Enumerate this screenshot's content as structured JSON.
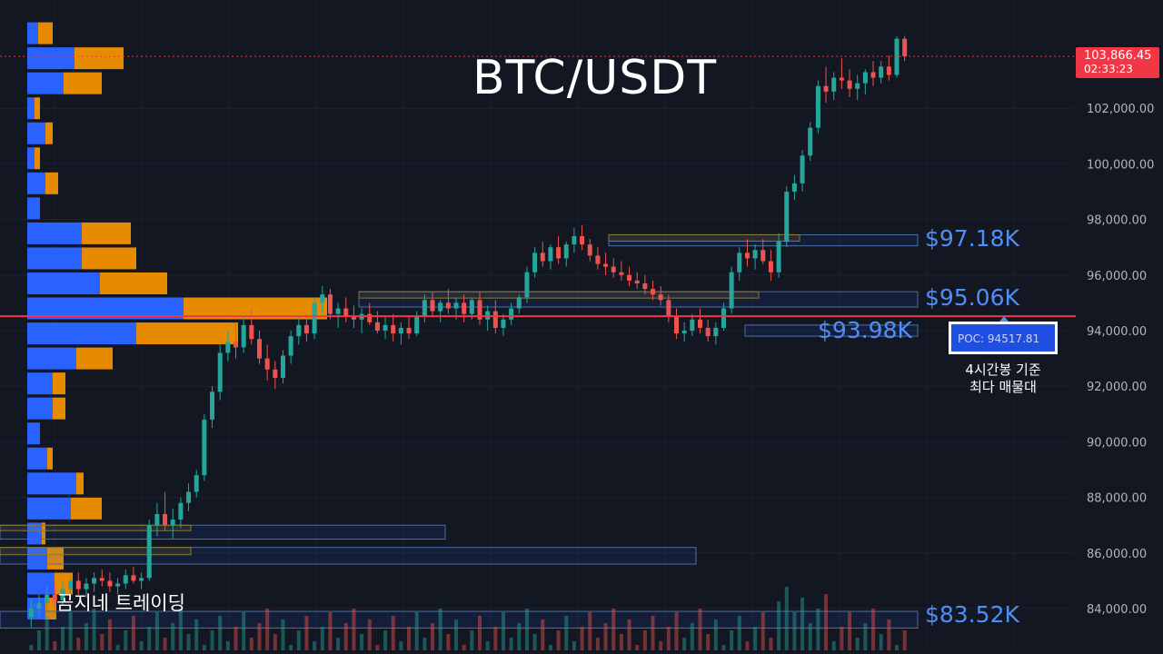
{
  "chart_data": {
    "type": "candlestick",
    "title": "BTC/USDT",
    "y_axis": {
      "ticks": [
        84000,
        86000,
        88000,
        90000,
        92000,
        94000,
        96000,
        98000,
        100000,
        102000
      ],
      "tick_labels": [
        "84,000.00",
        "86,000.00",
        "88,000.00",
        "90,000.00",
        "92,000.00",
        "94,000.00",
        "96,000.00",
        "98,000.00",
        "100,000.00",
        "102,000.00"
      ],
      "range": [
        82500,
        105000
      ]
    },
    "current_price": {
      "value": 103866.45,
      "label": "103,866.45",
      "countdown": "02:33:23"
    },
    "ohlc": [
      [
        83700,
        84300,
        83300,
        84000
      ],
      [
        84000,
        84500,
        83700,
        84200
      ],
      [
        84200,
        84800,
        83900,
        84500
      ],
      [
        84500,
        84900,
        84000,
        84300
      ],
      [
        84300,
        85000,
        84100,
        84700
      ],
      [
        84700,
        85200,
        84400,
        85000
      ],
      [
        85000,
        85300,
        84500,
        84700
      ],
      [
        84700,
        85100,
        84400,
        84900
      ],
      [
        84900,
        85300,
        84600,
        85100
      ],
      [
        85100,
        85400,
        84800,
        85000
      ],
      [
        85000,
        85300,
        84600,
        84800
      ],
      [
        84800,
        85100,
        84500,
        84900
      ],
      [
        84900,
        85400,
        84700,
        85200
      ],
      [
        85200,
        85500,
        84900,
        85000
      ],
      [
        85000,
        85300,
        84700,
        85100
      ],
      [
        85100,
        87200,
        85000,
        87000
      ],
      [
        87000,
        87800,
        86600,
        87400
      ],
      [
        87400,
        88200,
        86800,
        87000
      ],
      [
        87000,
        87600,
        86500,
        87200
      ],
      [
        87200,
        88000,
        86900,
        87800
      ],
      [
        87800,
        88500,
        87500,
        88200
      ],
      [
        88200,
        89000,
        88000,
        88800
      ],
      [
        88800,
        91000,
        88600,
        90800
      ],
      [
        90800,
        92000,
        90500,
        91800
      ],
      [
        91800,
        93500,
        91500,
        93200
      ],
      [
        93200,
        94000,
        92900,
        93600
      ],
      [
        93600,
        94300,
        93000,
        93400
      ],
      [
        93400,
        94500,
        93200,
        94200
      ],
      [
        94200,
        94800,
        93500,
        93700
      ],
      [
        93700,
        94000,
        92800,
        93000
      ],
      [
        93000,
        93500,
        92200,
        92600
      ],
      [
        92600,
        92900,
        91900,
        92300
      ],
      [
        92300,
        93300,
        92100,
        93100
      ],
      [
        93100,
        94000,
        92800,
        93800
      ],
      [
        93800,
        94500,
        93500,
        94200
      ],
      [
        94200,
        94600,
        93600,
        93900
      ],
      [
        93900,
        95200,
        93700,
        95000
      ],
      [
        95000,
        95600,
        94600,
        95300
      ],
      [
        95300,
        95500,
        94400,
        94600
      ],
      [
        94600,
        95000,
        94100,
        94800
      ],
      [
        94800,
        95200,
        94300,
        94500
      ],
      [
        94500,
        94900,
        94100,
        94400
      ],
      [
        94400,
        94800,
        93900,
        94600
      ],
      [
        94600,
        95000,
        94200,
        94300
      ],
      [
        94300,
        94700,
        93900,
        94000
      ],
      [
        94000,
        94500,
        93700,
        94200
      ],
      [
        94200,
        94600,
        93600,
        93900
      ],
      [
        93900,
        94300,
        93500,
        94100
      ],
      [
        94100,
        94500,
        93700,
        93900
      ],
      [
        93900,
        94700,
        93800,
        94500
      ],
      [
        94500,
        95300,
        94300,
        95100
      ],
      [
        95100,
        95400,
        94500,
        94700
      ],
      [
        94700,
        95100,
        94300,
        95000
      ],
      [
        95000,
        95500,
        94600,
        94800
      ],
      [
        94800,
        95200,
        94400,
        95000
      ],
      [
        95000,
        95300,
        94300,
        94600
      ],
      [
        94600,
        95200,
        94400,
        95100
      ],
      [
        95100,
        95400,
        94200,
        94400
      ],
      [
        94400,
        94900,
        94000,
        94700
      ],
      [
        94700,
        95100,
        93900,
        94100
      ],
      [
        94100,
        94600,
        93800,
        94400
      ],
      [
        94400,
        95000,
        94200,
        94800
      ],
      [
        94800,
        95300,
        94600,
        95200
      ],
      [
        95200,
        96300,
        95000,
        96100
      ],
      [
        96100,
        97000,
        95900,
        96800
      ],
      [
        96800,
        97200,
        96300,
        96500
      ],
      [
        96500,
        97100,
        96200,
        97000
      ],
      [
        97000,
        97400,
        96400,
        96600
      ],
      [
        96600,
        97200,
        96300,
        97100
      ],
      [
        97100,
        97700,
        96800,
        97400
      ],
      [
        97400,
        97800,
        96900,
        97100
      ],
      [
        97100,
        97300,
        96500,
        96700
      ],
      [
        96700,
        97000,
        96200,
        96400
      ],
      [
        96400,
        96800,
        96000,
        96300
      ],
      [
        96300,
        96600,
        95900,
        96100
      ],
      [
        96100,
        96500,
        95800,
        96000
      ],
      [
        96000,
        96300,
        95600,
        95800
      ],
      [
        95800,
        96100,
        95500,
        95700
      ],
      [
        95700,
        96000,
        95300,
        95500
      ],
      [
        95500,
        95800,
        95100,
        95300
      ],
      [
        95300,
        95600,
        94900,
        95100
      ],
      [
        95100,
        95300,
        94300,
        94500
      ],
      [
        94500,
        94800,
        93700,
        93900
      ],
      [
        93900,
        94300,
        93600,
        94000
      ],
      [
        94000,
        94600,
        93800,
        94400
      ],
      [
        94400,
        94800,
        93900,
        94100
      ],
      [
        94100,
        94400,
        93600,
        93800
      ],
      [
        93800,
        94300,
        93500,
        94100
      ],
      [
        94100,
        95000,
        94000,
        94800
      ],
      [
        94800,
        96300,
        94600,
        96100
      ],
      [
        96100,
        97000,
        95800,
        96800
      ],
      [
        96800,
        97300,
        96300,
        96600
      ],
      [
        96600,
        97100,
        96200,
        96900
      ],
      [
        96900,
        97300,
        96400,
        96500
      ],
      [
        96500,
        96900,
        95800,
        96100
      ],
      [
        96100,
        97500,
        95900,
        97200
      ],
      [
        97200,
        99200,
        97000,
        99000
      ],
      [
        99000,
        99600,
        98700,
        99300
      ],
      [
        99300,
        100500,
        99000,
        100300
      ],
      [
        100300,
        101500,
        100100,
        101300
      ],
      [
        101300,
        103000,
        101100,
        102800
      ],
      [
        102800,
        103500,
        102200,
        102600
      ],
      [
        102600,
        103300,
        102300,
        103100
      ],
      [
        103100,
        103800,
        102700,
        103000
      ],
      [
        103000,
        103400,
        102400,
        102700
      ],
      [
        102700,
        103200,
        102300,
        102900
      ],
      [
        102900,
        103400,
        102500,
        103300
      ],
      [
        103300,
        103700,
        102800,
        103100
      ],
      [
        103100,
        103700,
        102900,
        103500
      ],
      [
        103500,
        103900,
        103000,
        103200
      ],
      [
        103200,
        104600,
        103100,
        104500
      ],
      [
        104500,
        104600,
        103700,
        103866
      ]
    ],
    "zones": [
      {
        "from": 97050,
        "to": 97450,
        "label": "$97.18K"
      },
      {
        "from": 94850,
        "to": 95400,
        "label": "$95.06K"
      },
      {
        "from": 93800,
        "to": 94200,
        "label": "$93.98K"
      },
      {
        "from": 83300,
        "to": 83900,
        "label": "$83.52K"
      },
      {
        "from": 86500,
        "to": 87000,
        "label": ""
      },
      {
        "from": 85600,
        "to": 86200,
        "label": ""
      }
    ],
    "poc": {
      "value": 94517.81,
      "label": "POC: 94517.81",
      "note_line1": "4시간봉 기준",
      "note_line2": "최다 매물대"
    },
    "volume_profile": [
      {
        "price": 104700,
        "buy": 12,
        "sell": 16
      },
      {
        "price": 103800,
        "buy": 52,
        "sell": 54
      },
      {
        "price": 102900,
        "buy": 40,
        "sell": 42
      },
      {
        "price": 102000,
        "buy": 8,
        "sell": 6
      },
      {
        "price": 101100,
        "buy": 20,
        "sell": 8
      },
      {
        "price": 100200,
        "buy": 8,
        "sell": 6
      },
      {
        "price": 99300,
        "buy": 20,
        "sell": 14
      },
      {
        "price": 98400,
        "buy": 14,
        "sell": 0
      },
      {
        "price": 97500,
        "buy": 60,
        "sell": 54
      },
      {
        "price": 96600,
        "buy": 60,
        "sell": 60
      },
      {
        "price": 95700,
        "buy": 80,
        "sell": 74
      },
      {
        "price": 94800,
        "buy": 172,
        "sell": 158
      },
      {
        "price": 93900,
        "buy": 120,
        "sell": 112
      },
      {
        "price": 93000,
        "buy": 54,
        "sell": 40
      },
      {
        "price": 92100,
        "buy": 28,
        "sell": 14
      },
      {
        "price": 91200,
        "buy": 28,
        "sell": 14
      },
      {
        "price": 90300,
        "buy": 14,
        "sell": 0
      },
      {
        "price": 89400,
        "buy": 22,
        "sell": 6
      },
      {
        "price": 88500,
        "buy": 54,
        "sell": 8
      },
      {
        "price": 87600,
        "buy": 48,
        "sell": 34
      },
      {
        "price": 86700,
        "buy": 16,
        "sell": 4
      },
      {
        "price": 85800,
        "buy": 22,
        "sell": 18
      },
      {
        "price": 84900,
        "buy": 30,
        "sell": 20
      },
      {
        "price": 84000,
        "buy": 20,
        "sell": 12
      }
    ],
    "grid": true,
    "watermark": "곰지네 트레이딩",
    "colors": {
      "up": "#26a69a",
      "down": "#ef5350",
      "buy": "#2962ff",
      "sell": "#e68a00",
      "level_text": "#4f8ef7",
      "poc_line": "#f23645",
      "price_tag": "#f23645"
    }
  }
}
